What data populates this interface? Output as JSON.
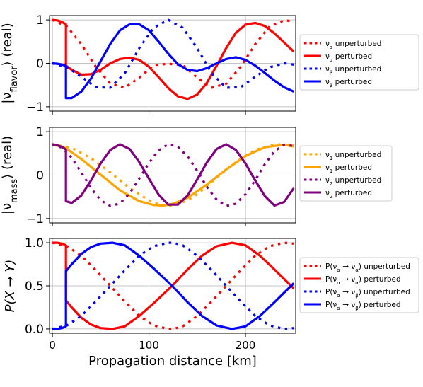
{
  "chart_data": [
    {
      "type": "line",
      "xlim": [
        -3,
        252
      ],
      "ylim": [
        -1.1,
        1.1
      ],
      "grid": true,
      "ylabel_main": "|ν",
      "ylabel_sub": "flavor",
      "ylabel_tail": "⟩ (real)",
      "yticks": [
        {
          "value": 1,
          "label": "1"
        },
        {
          "value": 0,
          "label": "0"
        },
        {
          "value": -1,
          "label": "−1"
        }
      ],
      "xticks": [
        0,
        100,
        200
      ],
      "xtick_labels_visible": false,
      "legend_position": "right",
      "series": [
        {
          "name": "ν_α unperturbed",
          "legend_main": "ν",
          "legend_sub": "α",
          "legend_suffix": " unperturbed",
          "color": "#ff0000",
          "dashed": true,
          "x": [
            0,
            15,
            30,
            45,
            60,
            75,
            90,
            105,
            120,
            135,
            150,
            165,
            180,
            195,
            210,
            225,
            240,
            250
          ],
          "y": [
            1.0,
            0.85,
            0.44,
            -0.08,
            -0.47,
            -0.56,
            -0.33,
            -0.04,
            -0.01,
            -0.04,
            -0.33,
            -0.56,
            -0.47,
            -0.08,
            0.44,
            0.85,
            0.99,
            0.97
          ]
        },
        {
          "name": "ν_α perturbed",
          "legend_main": "ν",
          "legend_sub": "α",
          "legend_suffix": " perturbed",
          "color": "#ff0000",
          "dashed": false,
          "x": [
            0,
            5,
            10,
            14,
            14.01,
            20,
            30,
            40,
            50,
            60,
            70,
            80,
            90,
            100,
            110,
            120,
            130,
            140,
            150,
            160,
            170,
            180,
            190,
            200,
            210,
            220,
            230,
            240,
            250
          ],
          "y": [
            1.0,
            0.99,
            0.95,
            0.9,
            -0.05,
            -0.15,
            -0.26,
            -0.25,
            -0.15,
            0.0,
            0.1,
            0.13,
            0.08,
            -0.08,
            -0.32,
            -0.57,
            -0.76,
            -0.82,
            -0.72,
            -0.45,
            -0.06,
            0.35,
            0.7,
            0.89,
            0.93,
            0.86,
            0.69,
            0.48,
            0.27
          ]
        },
        {
          "name": "ν_β unperturbed",
          "legend_main": "ν",
          "legend_sub": "β",
          "legend_suffix": " unperturbed",
          "color": "#0000ff",
          "dashed": true,
          "x": [
            0,
            15,
            30,
            45,
            60,
            75,
            90,
            105,
            120,
            135,
            150,
            165,
            180,
            195,
            210,
            225,
            240,
            250
          ],
          "y": [
            0.0,
            -0.09,
            -0.31,
            -0.55,
            -0.56,
            -0.23,
            0.35,
            0.82,
            1.0,
            0.82,
            0.35,
            -0.23,
            -0.56,
            -0.55,
            -0.31,
            -0.09,
            0.0,
            -0.03
          ]
        },
        {
          "name": "ν_β perturbed",
          "legend_main": "ν",
          "legend_sub": "β",
          "legend_suffix": " perturbed",
          "color": "#0000ff",
          "dashed": false,
          "x": [
            0,
            5,
            10,
            14,
            14.01,
            20,
            30,
            40,
            50,
            60,
            70,
            80,
            90,
            100,
            110,
            120,
            130,
            140,
            150,
            160,
            170,
            180,
            190,
            200,
            210,
            220,
            230,
            240,
            250
          ],
          "y": [
            0.0,
            -0.01,
            -0.03,
            -0.06,
            -0.8,
            -0.8,
            -0.65,
            -0.35,
            0.05,
            0.45,
            0.76,
            0.9,
            0.9,
            0.76,
            0.5,
            0.22,
            -0.02,
            -0.15,
            -0.18,
            -0.11,
            0.0,
            0.1,
            0.14,
            0.08,
            -0.05,
            -0.22,
            -0.4,
            -0.55,
            -0.65
          ]
        }
      ]
    },
    {
      "type": "line",
      "xlim": [
        -3,
        252
      ],
      "ylim": [
        -1.1,
        1.1
      ],
      "grid": true,
      "ylabel_main": "|ν",
      "ylabel_sub": "mass",
      "ylabel_tail": "⟩ (real)",
      "yticks": [
        {
          "value": 1,
          "label": "1"
        },
        {
          "value": 0,
          "label": "0"
        },
        {
          "value": -1,
          "label": "−1"
        }
      ],
      "xticks": [
        0,
        100,
        200
      ],
      "xtick_labels_visible": false,
      "legend_position": "right",
      "series": [
        {
          "name": "ν_1 unperturbed",
          "legend_main": "ν",
          "legend_sub": "1",
          "legend_suffix": " unperturbed",
          "color": "#ffa500",
          "dashed": true,
          "x": [
            0,
            20,
            40,
            60,
            80,
            100,
            110,
            120,
            130,
            140,
            150,
            170,
            190,
            210,
            230,
            250
          ],
          "y": [
            0.71,
            0.63,
            0.39,
            0.06,
            -0.3,
            -0.58,
            -0.67,
            -0.71,
            -0.67,
            -0.58,
            -0.44,
            -0.06,
            0.3,
            0.58,
            0.71,
            0.69
          ]
        },
        {
          "name": "ν_1 perturbed",
          "legend_main": "ν",
          "legend_sub": "1",
          "legend_suffix": " perturbed",
          "color": "#ffa500",
          "dashed": false,
          "x": [
            0,
            14,
            30,
            50,
            70,
            90,
            105,
            115,
            125,
            140,
            160,
            180,
            200,
            220,
            240,
            250
          ],
          "y": [
            0.71,
            0.62,
            0.37,
            0.01,
            -0.35,
            -0.6,
            -0.69,
            -0.7,
            -0.66,
            -0.52,
            -0.22,
            0.13,
            0.44,
            0.64,
            0.7,
            0.66
          ]
        },
        {
          "name": "ν_2 unperturbed",
          "legend_main": "ν",
          "legend_sub": "2",
          "legend_suffix": " unperturbed",
          "color": "#800080",
          "dashed": true,
          "x": [
            0,
            10,
            20,
            30,
            40,
            50,
            60,
            70,
            80,
            90,
            100,
            110,
            120,
            130,
            140,
            150,
            160,
            170,
            180,
            190,
            200,
            210,
            220,
            230,
            240,
            250
          ],
          "y": [
            0.71,
            0.63,
            0.4,
            0.06,
            -0.3,
            -0.58,
            -0.71,
            -0.65,
            -0.42,
            -0.08,
            0.28,
            0.57,
            0.71,
            0.65,
            0.43,
            0.1,
            -0.27,
            -0.56,
            -0.71,
            -0.66,
            -0.44,
            -0.12,
            0.25,
            0.55,
            0.7,
            0.67
          ]
        },
        {
          "name": "ν_2 perturbed",
          "legend_main": "ν",
          "legend_sub": "2",
          "legend_suffix": " perturbed",
          "color": "#800080",
          "dashed": false,
          "x": [
            0,
            5,
            10,
            14,
            14.01,
            20,
            30,
            40,
            50,
            60,
            70,
            80,
            90,
            100,
            110,
            120,
            130,
            140,
            150,
            160,
            170,
            180,
            190,
            200,
            210,
            220,
            230,
            240,
            250
          ],
          "y": [
            0.71,
            0.69,
            0.65,
            0.59,
            -0.6,
            -0.64,
            -0.47,
            -0.12,
            0.27,
            0.58,
            0.71,
            0.6,
            0.3,
            -0.08,
            -0.45,
            -0.68,
            -0.68,
            -0.47,
            -0.1,
            0.29,
            0.6,
            0.71,
            0.58,
            0.27,
            -0.12,
            -0.48,
            -0.7,
            -0.62,
            -0.3
          ]
        }
      ]
    },
    {
      "type": "line",
      "xlim": [
        -3,
        252
      ],
      "ylim": [
        -0.05,
        1.05
      ],
      "grid": true,
      "ylabel_main": "P(X → Y)",
      "ylabel_sub": "",
      "ylabel_tail": "",
      "yticks": [
        {
          "value": 1.0,
          "label": "1.0"
        },
        {
          "value": 0.5,
          "label": "0.5"
        },
        {
          "value": 0.0,
          "label": "0.0"
        }
      ],
      "xticks": [
        0,
        100,
        200
      ],
      "xtick_labels": [
        "0",
        "100",
        "200"
      ],
      "xtick_labels_visible": true,
      "xlabel": "Propagation distance [km]",
      "legend_position": "right",
      "series": [
        {
          "name": "P(ν_α → ν_α) unperturbed",
          "legend_main": "P(ν",
          "legend_sub": "α",
          "legend_suffix": " → ν",
          "legend_sub2": "α",
          "legend_suffix2": ") unperturbed",
          "color": "#ff0000",
          "dashed": true,
          "x": [
            0,
            15,
            30,
            45,
            60,
            75,
            90,
            105,
            120,
            125,
            135,
            150,
            165,
            180,
            195,
            210,
            225,
            240,
            250
          ],
          "y": [
            1.0,
            0.96,
            0.85,
            0.68,
            0.5,
            0.32,
            0.15,
            0.04,
            0.0,
            0.0,
            0.03,
            0.15,
            0.32,
            0.5,
            0.68,
            0.85,
            0.96,
            1.0,
            0.99
          ]
        },
        {
          "name": "P(ν_α → ν_α) perturbed",
          "legend_main": "P(ν",
          "legend_sub": "α",
          "legend_suffix": " → ν",
          "legend_sub2": "α",
          "legend_suffix2": ") perturbed",
          "color": "#ff0000",
          "dashed": false,
          "x": [
            0,
            5,
            10,
            14,
            14.01,
            20,
            30,
            40,
            50,
            62,
            75,
            90,
            105,
            124,
            140,
            155,
            170,
            186,
            200,
            215,
            230,
            240,
            250
          ],
          "y": [
            1.0,
            1.0,
            0.99,
            0.97,
            0.33,
            0.25,
            0.13,
            0.05,
            0.01,
            0.0,
            0.03,
            0.15,
            0.3,
            0.5,
            0.69,
            0.85,
            0.96,
            1.0,
            0.97,
            0.85,
            0.69,
            0.58,
            0.47
          ]
        },
        {
          "name": "P(ν_α → ν_β) unperturbed",
          "legend_main": "P(ν",
          "legend_sub": "α",
          "legend_suffix": " → ν",
          "legend_sub2": "β",
          "legend_suffix2": ") unperturbed",
          "color": "#0000ff",
          "dashed": true,
          "x": [
            0,
            15,
            30,
            45,
            60,
            75,
            90,
            105,
            120,
            125,
            135,
            150,
            165,
            180,
            195,
            210,
            225,
            240,
            250
          ],
          "y": [
            0.0,
            0.04,
            0.15,
            0.32,
            0.5,
            0.68,
            0.85,
            0.96,
            1.0,
            1.0,
            0.97,
            0.85,
            0.68,
            0.5,
            0.32,
            0.15,
            0.04,
            0.0,
            0.01
          ]
        },
        {
          "name": "P(ν_α → ν_β) perturbed",
          "legend_main": "P(ν",
          "legend_sub": "α",
          "legend_suffix": " → ν",
          "legend_sub2": "β",
          "legend_suffix2": ") perturbed",
          "color": "#0000ff",
          "dashed": false,
          "x": [
            0,
            5,
            10,
            14,
            14.01,
            20,
            30,
            40,
            50,
            62,
            75,
            90,
            105,
            124,
            140,
            155,
            170,
            186,
            200,
            215,
            230,
            240,
            250
          ],
          "y": [
            0.0,
            0.0,
            0.01,
            0.03,
            0.67,
            0.75,
            0.87,
            0.95,
            0.99,
            1.0,
            0.97,
            0.85,
            0.7,
            0.5,
            0.31,
            0.15,
            0.04,
            0.0,
            0.03,
            0.15,
            0.31,
            0.42,
            0.53
          ]
        }
      ]
    }
  ]
}
